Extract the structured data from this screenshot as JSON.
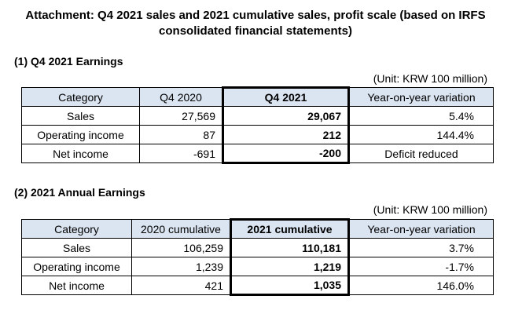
{
  "title_line1": "Attachment: Q4 2021 sales and 2021 cumulative sales, profit scale (based on IRFS",
  "title_line2": "consolidated financial statements)",
  "q4": {
    "heading": "(1) Q4 2021 Earnings",
    "unit": "(Unit: KRW 100 million)",
    "columns": [
      "Category",
      "Q4 2020",
      "Q4 2021",
      "Year-on-year variation"
    ],
    "rows": [
      {
        "category": "Sales",
        "prev": "27,569",
        "curr": "29,067",
        "variation": "5.4%"
      },
      {
        "category": "Operating income",
        "prev": "87",
        "curr": "212",
        "variation": "144.4%"
      },
      {
        "category": "Net income",
        "prev": "-691",
        "curr": "-200",
        "variation": "Deficit reduced"
      }
    ]
  },
  "annual": {
    "heading": "(2) 2021 Annual Earnings",
    "unit": "(Unit: KRW 100 million)",
    "columns": [
      "Category",
      "2020 cumulative",
      "2021 cumulative",
      "Year-on-year variation"
    ],
    "rows": [
      {
        "category": "Sales",
        "prev": "106,259",
        "curr": "110,181",
        "variation": "3.7%"
      },
      {
        "category": "Operating income",
        "prev": "1,239",
        "curr": "1,219",
        "variation": "-1.7%"
      },
      {
        "category": "Net income",
        "prev": "421",
        "curr": "1,035",
        "variation": "146.0%"
      }
    ]
  }
}
